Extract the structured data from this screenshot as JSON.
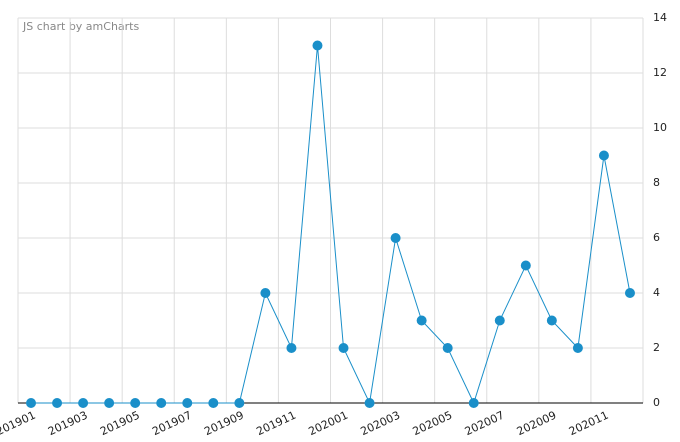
{
  "chart_data": {
    "type": "line",
    "watermark": "JS chart by amCharts",
    "categories": [
      "201901",
      null,
      "201903",
      null,
      "201905",
      null,
      "201907",
      null,
      "201909",
      null,
      "201911",
      null,
      "202001",
      null,
      "202003",
      null,
      "202005",
      null,
      "202007",
      null,
      "202009",
      null,
      "202011",
      null
    ],
    "values": [
      0,
      0,
      0,
      0,
      0,
      0,
      0,
      0,
      0,
      4,
      2,
      13,
      2,
      0,
      6,
      3,
      2,
      0,
      3,
      5,
      3,
      2,
      9,
      4
    ],
    "color": "#1a8fc9",
    "ylim": [
      0,
      14
    ],
    "yticks": [
      0,
      2,
      4,
      6,
      8,
      10,
      12,
      14
    ],
    "grid": true
  }
}
